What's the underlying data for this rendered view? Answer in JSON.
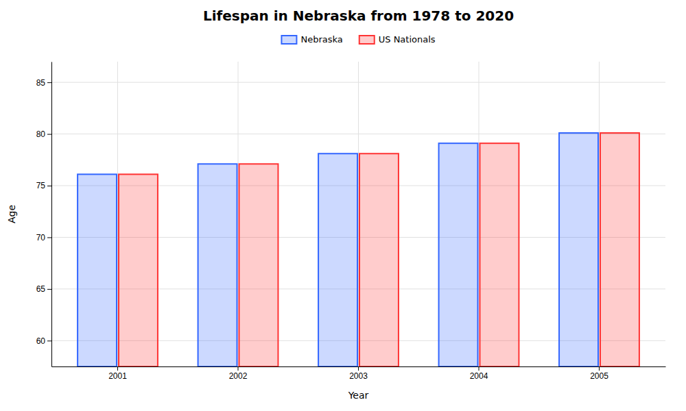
{
  "chart_data": {
    "type": "bar",
    "title": "Lifespan in Nebraska from 1978 to 2020",
    "xlabel": "Year",
    "ylabel": "Age",
    "categories": [
      "2001",
      "2002",
      "2003",
      "2004",
      "2005"
    ],
    "series": [
      {
        "name": "Nebraska",
        "color": "#3366ff",
        "values": [
          76.1,
          77.1,
          78.1,
          79.1,
          80.1
        ]
      },
      {
        "name": "US Nationals",
        "color": "#ff3333",
        "values": [
          76.1,
          77.1,
          78.1,
          79.1,
          80.1
        ]
      }
    ],
    "ylim": [
      57.5,
      87
    ],
    "yticks": [
      60,
      65,
      70,
      75,
      80,
      85
    ],
    "grid": true,
    "legend": "top"
  }
}
